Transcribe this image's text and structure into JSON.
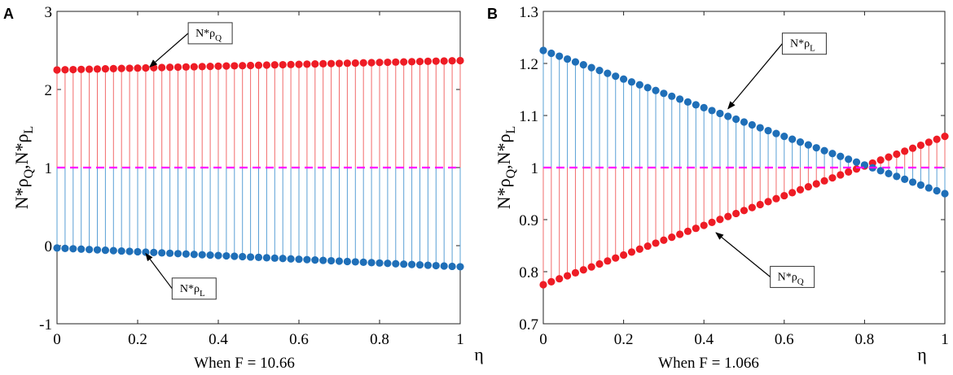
{
  "colors": {
    "rho_q": "#ee1c25",
    "rho_q_stem": "#f26b6b",
    "rho_l": "#1f6fb8",
    "rho_l_stem": "#5aa0d6",
    "reference_line": "#ff00ff"
  },
  "chart_data": [
    {
      "type": "stem",
      "panel_letter": "A",
      "caption": "When F = 10.66",
      "xlabel": "η",
      "ylabel_base": "N*ρ",
      "ylabel_sub1": "Q",
      "ylabel_mid": ",N*ρ",
      "ylabel_sub2": "L",
      "xlim": [
        0,
        1
      ],
      "ylim": [
        -1,
        3
      ],
      "xticks": [
        0,
        0.2,
        0.4,
        0.6,
        0.8,
        1
      ],
      "xtick_labels": [
        "0",
        "0.2",
        "0.4",
        "0.6",
        "0.8",
        "1"
      ],
      "yticks": [
        -1,
        0,
        1,
        2,
        3
      ],
      "ytick_labels": [
        "-1",
        "0",
        "1",
        "2",
        "3"
      ],
      "baseline": 1,
      "n_points": 51,
      "series": [
        {
          "name": "N*ρQ",
          "start": 2.25,
          "end": 2.37
        },
        {
          "name": "N*ρL",
          "start": -0.03,
          "end": -0.27
        }
      ],
      "annotations": [
        {
          "label_base": "N*ρ",
          "label_sub": "Q",
          "series": "N*ρQ",
          "target": [
            0.23,
            2.29
          ],
          "label_at": [
            0.38,
            2.72
          ]
        },
        {
          "label_base": "N*ρ",
          "label_sub": "L",
          "series": "N*ρL",
          "target": [
            0.22,
            -0.1
          ],
          "label_at": [
            0.34,
            -0.55
          ]
        }
      ]
    },
    {
      "type": "stem",
      "panel_letter": "B",
      "caption": "When F = 1.066",
      "xlabel": "η",
      "ylabel_base": "N*ρ",
      "ylabel_sub1": "Q",
      "ylabel_mid": ",N*ρ",
      "ylabel_sub2": "L",
      "xlim": [
        0,
        1
      ],
      "ylim": [
        0.7,
        1.3
      ],
      "xticks": [
        0,
        0.2,
        0.4,
        0.6,
        0.8,
        1
      ],
      "xtick_labels": [
        "0",
        "0.2",
        "0.4",
        "0.6",
        "0.8",
        "1"
      ],
      "yticks": [
        0.7,
        0.8,
        0.9,
        1,
        1.1,
        1.2,
        1.3
      ],
      "ytick_labels": [
        "0.7",
        "0.8",
        "0.9",
        "1",
        "1.1",
        "1.2",
        "1.3"
      ],
      "baseline": 1,
      "n_points": 51,
      "series": [
        {
          "name": "N*ρQ",
          "start": 0.775,
          "end": 1.06
        },
        {
          "name": "N*ρL",
          "start": 1.225,
          "end": 0.95
        }
      ],
      "annotations": [
        {
          "label_base": "N*ρ",
          "label_sub": "L",
          "series": "N*ρL",
          "target": [
            0.46,
            1.113
          ],
          "label_at": [
            0.65,
            1.238
          ]
        },
        {
          "label_base": "N*ρ",
          "label_sub": "Q",
          "series": "N*ρQ",
          "target": [
            0.43,
            0.875
          ],
          "label_at": [
            0.62,
            0.79
          ]
        }
      ]
    }
  ]
}
